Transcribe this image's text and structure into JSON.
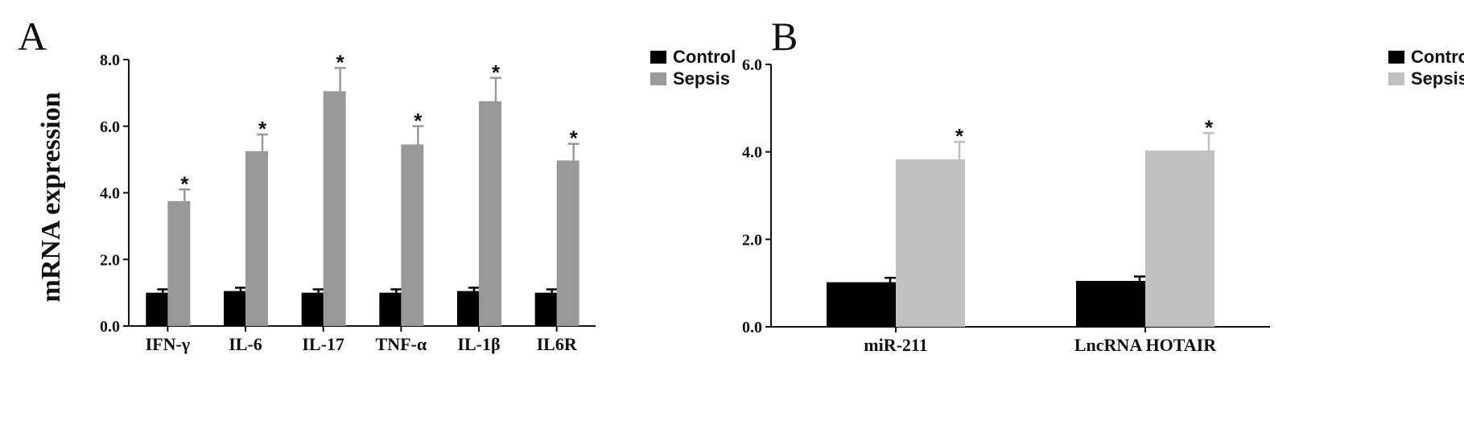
{
  "chart_data": [
    {
      "panel": "A",
      "type": "bar",
      "ylabel": "mRNA expression",
      "ylim": [
        0,
        8
      ],
      "yticks": [
        "0.0",
        "2.0",
        "4.0",
        "6.0",
        "8.0"
      ],
      "categories": [
        "IFN-γ",
        "IL-6",
        "IL-17",
        "TNF-α",
        "IL-1β",
        "IL6R"
      ],
      "legend_position": "top-right",
      "series": [
        {
          "name": "Control",
          "color": "#000000",
          "values": [
            1.0,
            1.05,
            1.0,
            1.0,
            1.05,
            1.0
          ],
          "errors": [
            0.1,
            0.1,
            0.1,
            0.1,
            0.1,
            0.1
          ],
          "markers": [
            "",
            "",
            "",
            "",
            "",
            ""
          ]
        },
        {
          "name": "Sepsis",
          "color": "#999999",
          "values": [
            3.75,
            5.25,
            7.05,
            5.45,
            6.75,
            4.97
          ],
          "errors": [
            0.35,
            0.5,
            0.7,
            0.55,
            0.7,
            0.5
          ],
          "markers": [
            "*",
            "*",
            "*",
            "*",
            "*",
            "*"
          ]
        }
      ]
    },
    {
      "panel": "B",
      "type": "bar",
      "ylabel": "",
      "ylim": [
        0,
        6
      ],
      "yticks": [
        "0.0",
        "2.0",
        "4.0",
        "6.0"
      ],
      "categories": [
        "miR-211",
        "LncRNA HOTAIR"
      ],
      "legend_position": "top-right",
      "series": [
        {
          "name": "Control",
          "color": "#000000",
          "values": [
            1.02,
            1.05
          ],
          "errors": [
            0.1,
            0.1
          ],
          "markers": [
            "",
            ""
          ]
        },
        {
          "name": "Sepsis",
          "color": "#c0c0c0",
          "values": [
            3.83,
            4.03
          ],
          "errors": [
            0.4,
            0.4
          ],
          "markers": [
            "*",
            "*"
          ]
        }
      ]
    }
  ]
}
